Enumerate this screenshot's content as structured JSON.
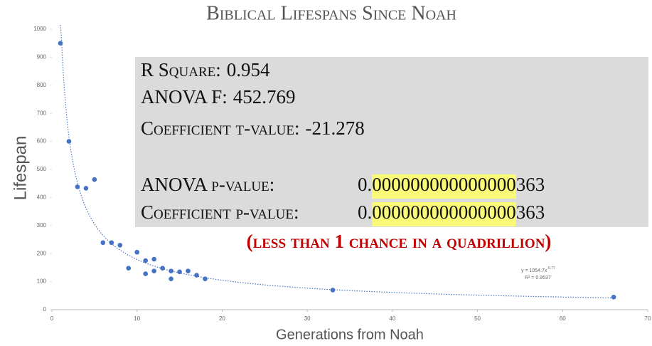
{
  "chart_data": {
    "type": "scatter",
    "title": "Biblical Lifespans Since Noah",
    "x_label": "Generations from Noah",
    "y_label": "Lifespan",
    "x": [
      1,
      2,
      3,
      4,
      5,
      6,
      7,
      8,
      9,
      10,
      11,
      11,
      12,
      12,
      13,
      14,
      14,
      15,
      16,
      17,
      18,
      33,
      66
    ],
    "values": [
      950,
      600,
      438,
      433,
      464,
      239,
      239,
      230,
      148,
      205,
      175,
      128,
      180,
      138,
      148,
      110,
      138,
      135,
      138,
      123,
      110,
      70,
      45
    ],
    "color": "#4472c4",
    "xlim": [
      0,
      70
    ],
    "xticks": [
      0,
      10,
      20,
      30,
      40,
      50,
      60,
      70
    ],
    "ylim": [
      0,
      1000
    ],
    "yticks": [
      0,
      100,
      200,
      300,
      400,
      500,
      600,
      700,
      800,
      900,
      1000
    ],
    "grid": false,
    "trendline": {
      "coefficient": 1054.7,
      "exponent": -0.77,
      "equation": "y = 1054.7x",
      "exponent_label": "-0.77",
      "r_squared": "R² = 0.9537"
    },
    "stats_box": {
      "lines": [
        {
          "label": "R Square:",
          "value": "0.954"
        },
        {
          "label": "ANOVA F:",
          "value": "452.769"
        },
        {
          "label": "Coefficient t-value:",
          "value": "-21.278"
        }
      ],
      "p_values": [
        {
          "label": "ANOVA p-value:",
          "prefix": "0.",
          "highlight": "000000000000000",
          "suffix": "363"
        },
        {
          "label": "Coefficient p-value:",
          "prefix": "0.",
          "highlight": "000000000000000",
          "suffix": "363"
        }
      ],
      "note": "(less than 1 chance in a quadrillion)"
    }
  }
}
